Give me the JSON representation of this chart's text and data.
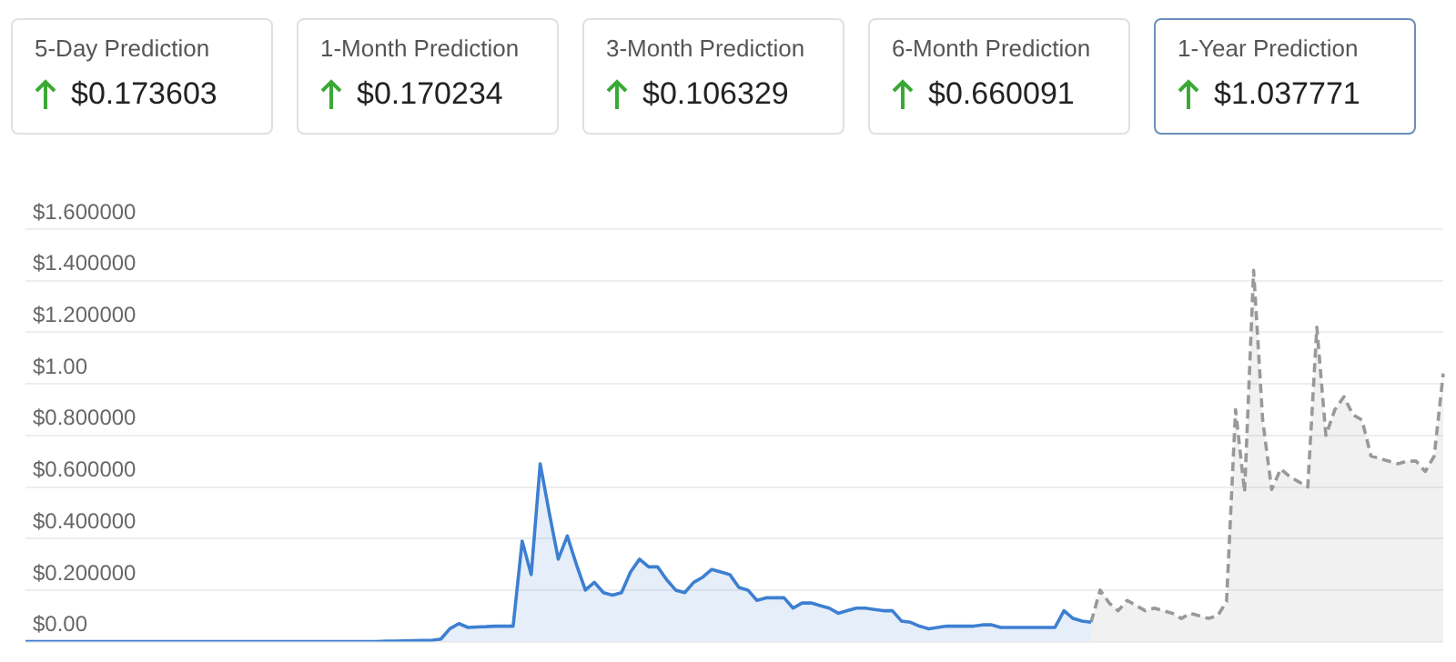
{
  "chart_data": {
    "type": "area",
    "annotations": [
      "5-Day Prediction",
      "$0.173603",
      "1-Month Prediction",
      "$0.170234",
      "3-Month Prediction",
      "$0.106329",
      "6-Month Prediction",
      "$0.660091",
      "1-Year Prediction",
      "$1.037771"
    ],
    "categories": [
      null,
      null,
      null,
      null,
      null,
      null,
      null,
      null,
      null,
      null,
      null,
      null,
      null,
      null,
      null,
      null,
      null,
      null,
      null,
      null,
      null,
      null,
      null,
      null,
      null,
      null,
      null,
      null,
      null,
      null,
      null,
      null,
      null,
      null,
      null,
      null,
      null,
      null,
      null,
      null,
      null,
      null,
      null,
      null,
      null,
      null,
      null,
      null,
      null,
      null,
      null,
      null,
      null,
      null,
      null,
      null,
      null,
      null,
      null,
      null,
      null,
      null,
      null,
      null,
      null,
      null,
      null,
      null,
      null,
      null,
      null,
      null,
      null,
      null,
      null,
      null,
      null,
      null,
      null,
      null,
      null,
      null,
      null,
      null,
      null,
      null,
      null,
      null,
      null,
      null,
      null,
      null,
      null,
      null,
      null,
      null,
      null,
      null,
      null,
      null,
      null,
      null,
      null,
      null,
      null,
      null,
      null,
      null,
      null,
      null,
      null,
      null,
      null,
      null,
      null,
      null,
      null,
      null,
      null,
      null,
      null,
      null,
      null,
      null,
      null,
      null,
      null,
      null,
      null,
      null,
      null,
      null,
      null,
      null,
      null,
      null,
      null,
      null,
      null,
      null,
      null,
      null,
      null,
      null,
      null,
      null,
      null,
      null,
      null,
      null,
      null,
      null,
      null,
      null,
      null,
      null,
      null,
      null
    ],
    "ylim": [
      0,
      1.6
    ],
    "yticks": [
      {
        "value": 0,
        "label": "$0.00"
      },
      {
        "value": 0.2,
        "label": "$0.200000"
      },
      {
        "value": 0.4,
        "label": "$0.400000"
      },
      {
        "value": 0.6,
        "label": "$0.600000"
      },
      {
        "value": 0.8,
        "label": "$0.800000"
      },
      {
        "value": 1,
        "label": "$1.00"
      },
      {
        "value": 1.2,
        "label": "$1.200000"
      },
      {
        "value": 1.4,
        "label": "$1.400000"
      },
      {
        "value": 1.6,
        "label": "$1.600000"
      }
    ],
    "grid": "y",
    "tick_labels": "y",
    "marker": "none",
    "series": [
      {
        "color": "#3d7fd1",
        "line_style": "solid",
        "values": [
          0,
          0,
          0,
          0,
          0,
          0,
          0,
          0,
          0,
          0,
          0,
          0,
          0,
          0,
          0,
          0,
          0,
          0,
          0,
          0,
          0,
          0,
          0,
          0,
          0,
          0,
          0,
          0,
          0,
          0,
          0,
          0,
          0,
          0,
          0,
          0,
          0,
          0,
          0,
          0,
          0.002,
          0.002,
          0.003,
          0.004,
          0.005,
          0.005,
          0.01,
          0.05,
          0.07,
          0.055,
          0.057,
          0.058,
          0.06,
          0.06,
          0.06,
          0.39,
          0.26,
          0.69,
          0.5,
          0.32,
          0.41,
          0.3,
          0.2,
          0.23,
          0.19,
          0.18,
          0.19,
          0.27,
          0.32,
          0.29,
          0.29,
          0.24,
          0.2,
          0.19,
          0.23,
          0.25,
          0.28,
          0.27,
          0.26,
          0.21,
          0.2,
          0.16,
          0.17,
          0.17,
          0.17,
          0.13,
          0.15,
          0.15,
          0.14,
          0.13,
          0.11,
          0.12,
          0.13,
          0.13,
          0.125,
          0.12,
          0.12,
          0.08,
          0.075,
          0.06,
          0.05,
          0.055,
          0.06,
          0.06,
          0.06,
          0.06,
          0.065,
          0.065,
          0.055,
          0.055,
          0.055,
          0.055,
          0.055,
          0.055,
          0.055,
          0.12,
          0.09,
          0.08,
          0.075,
          null,
          null,
          null,
          null,
          null,
          null,
          null,
          null,
          null,
          null,
          null,
          null,
          null,
          null,
          null,
          null,
          null,
          null,
          null,
          null,
          null,
          null,
          null,
          null,
          null,
          null,
          null,
          null,
          null,
          null,
          null,
          null,
          null,
          null,
          null,
          null,
          null,
          null,
          null
        ]
      },
      {
        "color": "#999999",
        "line_style": "dashed",
        "values": [
          null,
          null,
          null,
          null,
          null,
          null,
          null,
          null,
          null,
          null,
          null,
          null,
          null,
          null,
          null,
          null,
          null,
          null,
          null,
          null,
          null,
          null,
          null,
          null,
          null,
          null,
          null,
          null,
          null,
          null,
          null,
          null,
          null,
          null,
          null,
          null,
          null,
          null,
          null,
          null,
          null,
          null,
          null,
          null,
          null,
          null,
          null,
          null,
          null,
          null,
          null,
          null,
          null,
          null,
          null,
          null,
          null,
          null,
          null,
          null,
          null,
          null,
          null,
          null,
          null,
          null,
          null,
          null,
          null,
          null,
          null,
          null,
          null,
          null,
          null,
          null,
          null,
          null,
          null,
          null,
          null,
          null,
          null,
          null,
          null,
          null,
          null,
          null,
          null,
          null,
          null,
          null,
          null,
          null,
          null,
          null,
          null,
          null,
          null,
          null,
          null,
          null,
          null,
          null,
          null,
          null,
          null,
          null,
          null,
          null,
          null,
          null,
          null,
          null,
          null,
          null,
          null,
          null,
          0.075,
          0.2,
          0.15,
          0.12,
          0.16,
          0.14,
          0.12,
          0.13,
          0.12,
          0.11,
          0.09,
          0.11,
          0.1,
          0.09,
          0.1,
          0.155,
          0.9,
          0.58,
          1.44,
          0.86,
          0.59,
          0.67,
          0.64,
          0.62,
          0.6,
          1.22,
          0.8,
          0.9,
          0.95,
          0.88,
          0.86,
          0.72,
          0.71,
          0.7,
          0.69,
          0.7,
          0.7,
          0.66,
          0.72,
          1.04
        ]
      }
    ]
  }
}
